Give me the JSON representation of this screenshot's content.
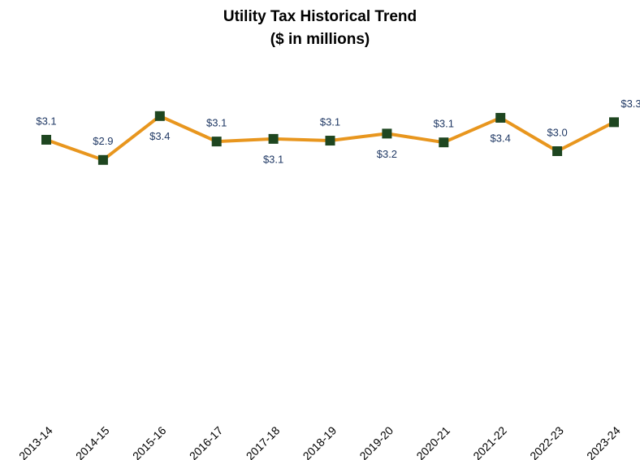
{
  "chart_data": {
    "type": "line",
    "title": "Utility Tax Historical Trend",
    "subtitle": "($ in millions)",
    "categories": [
      "2013-14",
      "2014-15",
      "2015-16",
      "2016-17",
      "2017-18",
      "2018-19",
      "2019-20",
      "2020-21",
      "2021-22",
      "2022-23",
      "2023-24"
    ],
    "series": [
      {
        "name": "Utility Tax",
        "color": "#e8961e",
        "marker_color": "#1e4620",
        "values": [
          3.13,
          2.9,
          3.4,
          3.11,
          3.14,
          3.12,
          3.2,
          3.1,
          3.38,
          3.0,
          3.33
        ],
        "value_labels": [
          "$3.1",
          "$2.9",
          "$3.4",
          "$3.1",
          "$3.1",
          "$3.1",
          "$3.2",
          "$3.1",
          "$3.4",
          "$3.0",
          "$3.3"
        ]
      }
    ],
    "ylim": [
      0,
      3.8
    ]
  }
}
